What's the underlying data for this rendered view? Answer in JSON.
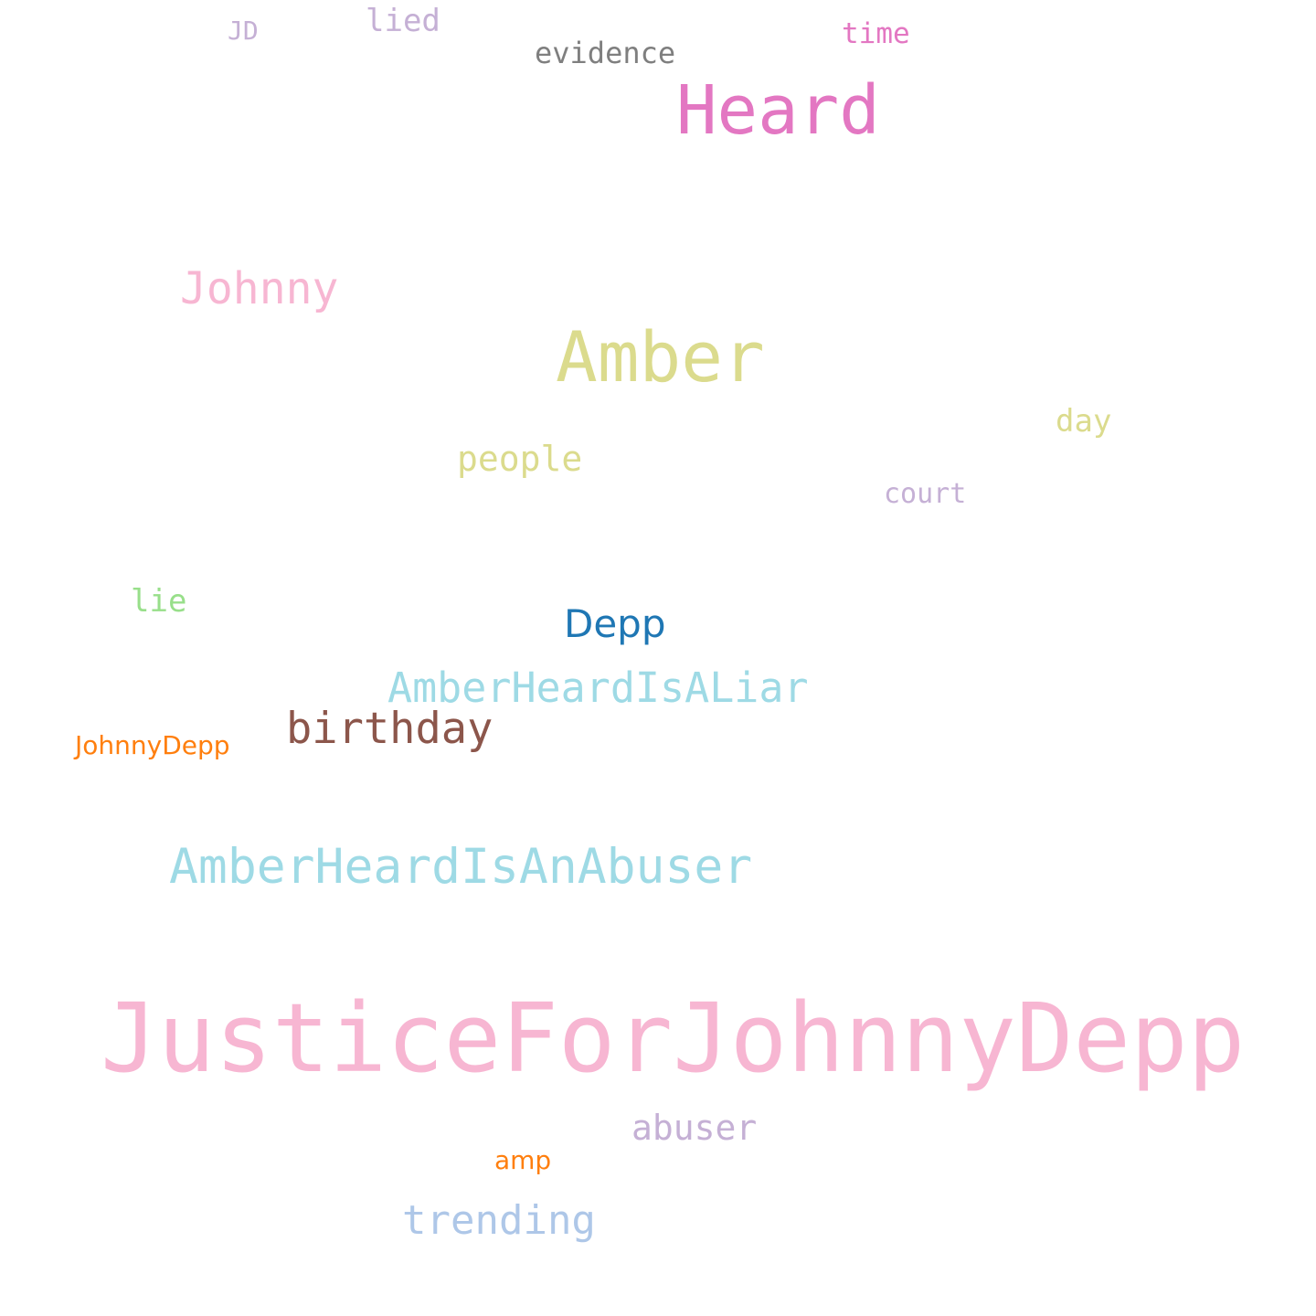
{
  "words": {
    "jd": {
      "text": "JD",
      "color": "#c5b0d5"
    },
    "lied": {
      "text": "lied",
      "color": "#c5b0d5"
    },
    "evidence": {
      "text": "evidence",
      "color": "#7f7f7f"
    },
    "time": {
      "text": "time",
      "color": "#e377c2"
    },
    "heard": {
      "text": "Heard",
      "color": "#e377c2"
    },
    "johnny": {
      "text": "Johnny",
      "color": "#f7b6d2"
    },
    "amber": {
      "text": "Amber",
      "color": "#dbdb8d"
    },
    "day": {
      "text": "day",
      "color": "#dbdb8d"
    },
    "people": {
      "text": "people",
      "color": "#dbdb8d"
    },
    "court": {
      "text": "court",
      "color": "#c5b0d5"
    },
    "lie": {
      "text": "lie",
      "color": "#98df8a"
    },
    "depp": {
      "text": "Depp",
      "color": "#1f77b4"
    },
    "liar": {
      "text": "AmberHeardIsALiar",
      "color": "#9edae5"
    },
    "birthday": {
      "text": "birthday",
      "color": "#8c564b"
    },
    "jdepp": {
      "text": "JohnnyDepp",
      "color": "#ff7f0e"
    },
    "abuser1": {
      "text": "AmberHeardIsAnAbuser",
      "color": "#9edae5"
    },
    "justice": {
      "text": "JusticeForJohnnyDepp",
      "color": "#f7b6d2"
    },
    "abuser2": {
      "text": "abuser",
      "color": "#c5b0d5"
    },
    "amp": {
      "text": "amp",
      "color": "#ff7f0e"
    },
    "trending": {
      "text": "trending",
      "color": "#aec7e8"
    }
  }
}
